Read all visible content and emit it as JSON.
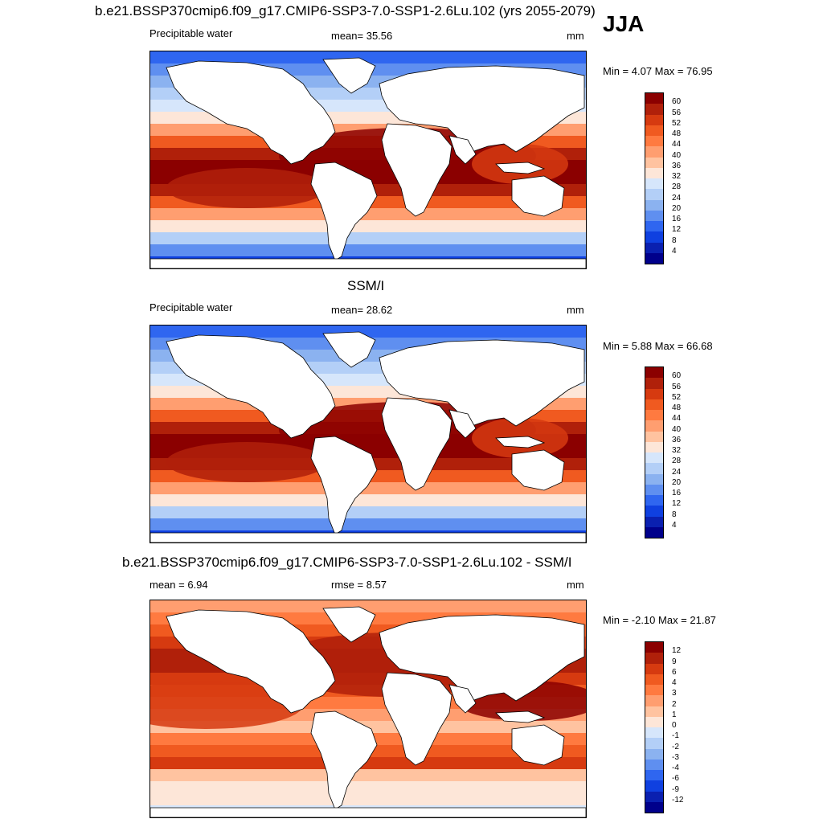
{
  "season": "JJA",
  "panels": [
    {
      "header": "b.e21.BSSP370cmip6.f09_g17.CMIP6-SSP3-7.0-SSP1-2.6Lu.102 (yrs 2055-2079)",
      "left": "Precipitable water",
      "center": "mean=  35.56",
      "units": "mm",
      "minmax": "Min =   4.07 Max =  76.95",
      "colorbar_labels": [
        "60",
        "56",
        "52",
        "48",
        "44",
        "40",
        "36",
        "32",
        "28",
        "24",
        "20",
        "16",
        "12",
        "8",
        "4"
      ],
      "colors": [
        "#8b0000",
        "#b0200a",
        "#d63a10",
        "#f05a20",
        "#ff7a40",
        "#ff9e70",
        "#ffc3a0",
        "#fde6d8",
        "#d6e6fb",
        "#b3cff7",
        "#8bb2f0",
        "#5f8ff0",
        "#2f66f0",
        "#0f40e0",
        "#0a20b0",
        "#00008b"
      ]
    },
    {
      "header": "SSM/I",
      "left": "Precipitable water",
      "center": "mean=  28.62",
      "units": "mm",
      "minmax": "Min =   5.88 Max =  66.68",
      "colorbar_labels": [
        "60",
        "56",
        "52",
        "48",
        "44",
        "40",
        "36",
        "32",
        "28",
        "24",
        "20",
        "16",
        "12",
        "8",
        "4"
      ],
      "colors": [
        "#8b0000",
        "#b0200a",
        "#d63a10",
        "#f05a20",
        "#ff7a40",
        "#ff9e70",
        "#ffc3a0",
        "#fde6d8",
        "#d6e6fb",
        "#b3cff7",
        "#8bb2f0",
        "#5f8ff0",
        "#2f66f0",
        "#0f40e0",
        "#0a20b0",
        "#00008b"
      ]
    },
    {
      "header": "b.e21.BSSP370cmip6.f09_g17.CMIP6-SSP3-7.0-SSP1-2.6Lu.102 - SSM/I",
      "left": "mean =   6.94",
      "center": "rmse =   8.57",
      "units": "mm",
      "minmax": "Min =  -2.10 Max =  21.87",
      "colorbar_labels": [
        "12",
        "9",
        "6",
        "4",
        "3",
        "2",
        "1",
        "0",
        "-1",
        "-2",
        "-3",
        "-4",
        "-6",
        "-9",
        "-12"
      ],
      "colors": [
        "#8b0000",
        "#b0200a",
        "#d63a10",
        "#f05a20",
        "#ff7a40",
        "#ff9e70",
        "#ffc3a0",
        "#fde6d8",
        "#d6e6fb",
        "#b3cff7",
        "#8bb2f0",
        "#5f8ff0",
        "#2f66f0",
        "#0f40e0",
        "#0a20b0",
        "#00008b"
      ]
    }
  ]
}
